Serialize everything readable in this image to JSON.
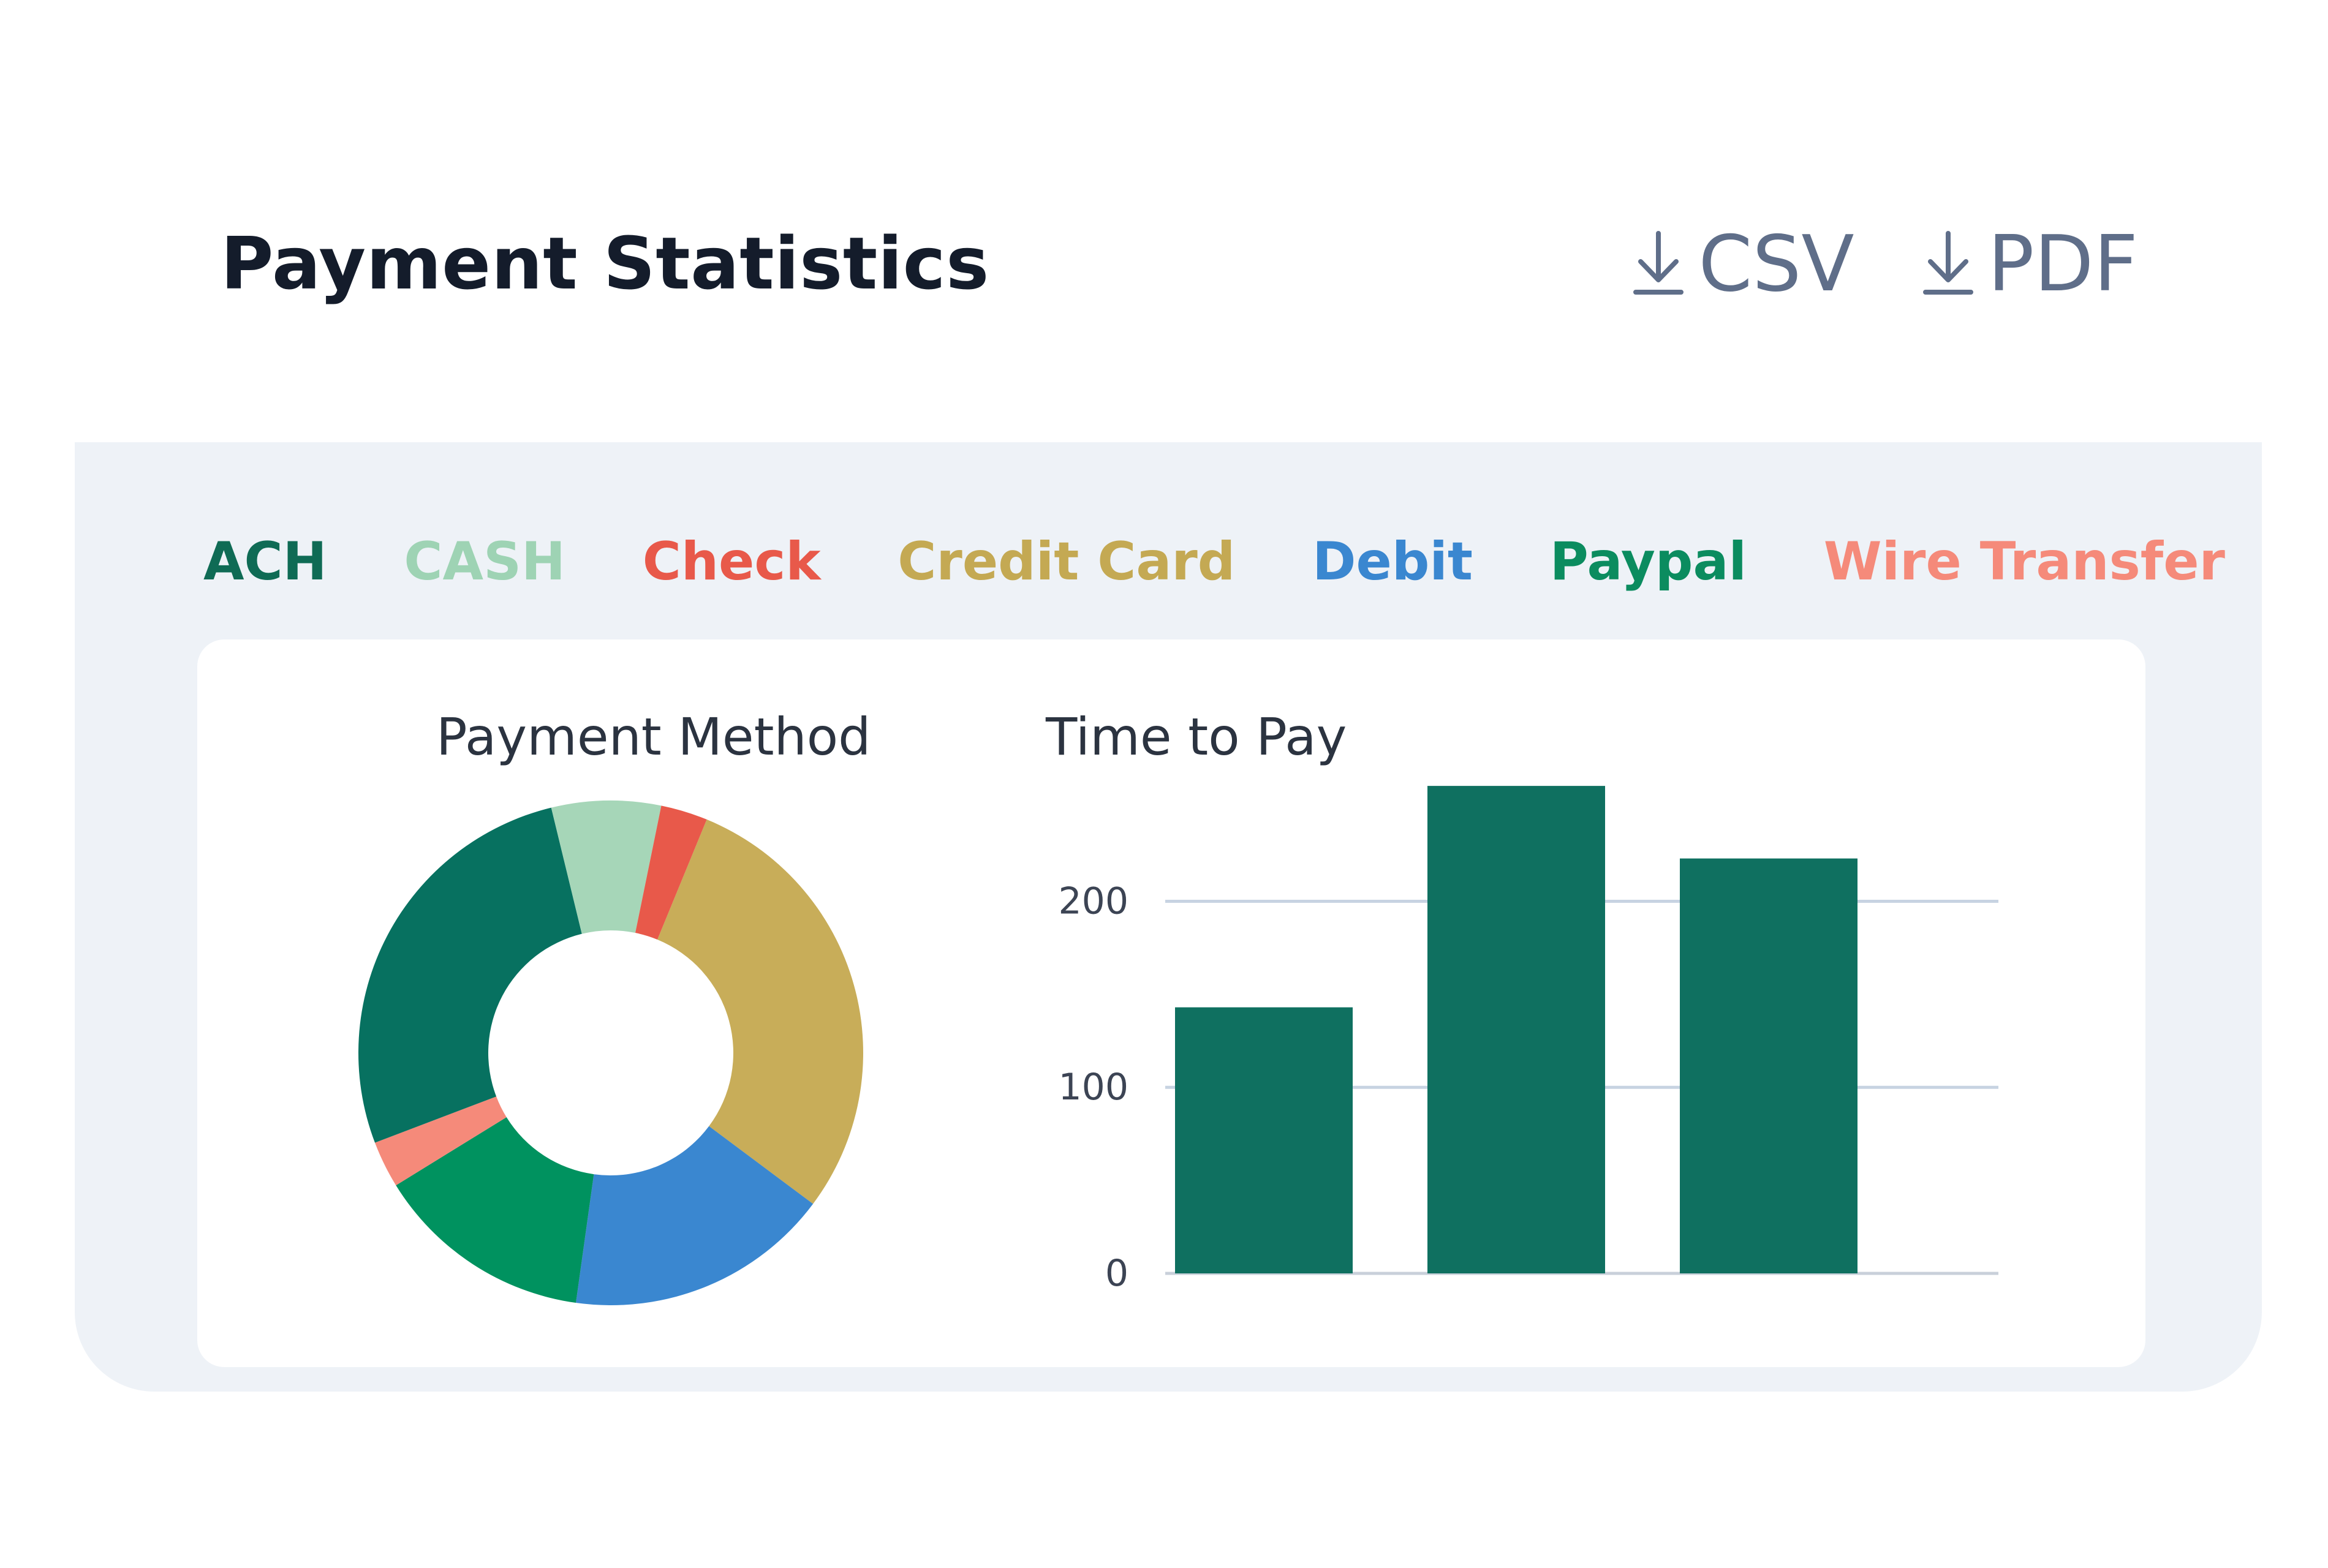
{
  "header": {
    "title": "Payment Statistics",
    "downloads": [
      {
        "label": "CSV",
        "icon": "download-icon"
      },
      {
        "label": "PDF",
        "icon": "download-icon"
      }
    ]
  },
  "legend": [
    {
      "label": "ACH",
      "color": "#0f6b55"
    },
    {
      "label": "CASH",
      "color": "#9ed3b4"
    },
    {
      "label": "Check",
      "color": "#e8594a"
    },
    {
      "label": "Credit Card",
      "color": "#c4a953"
    },
    {
      "label": "Debit",
      "color": "#3a87d0"
    },
    {
      "label": "Paypal",
      "color": "#0b8c5f"
    },
    {
      "label": "Wire Transfer",
      "color": "#f58a7a"
    }
  ],
  "chart_data": [
    {
      "type": "pie",
      "title": "Payment Method",
      "donut": true,
      "labels": [
        "Credit Card",
        "Debit",
        "Paypal",
        "Wire Transfer",
        "ACH",
        "CASH",
        "Check"
      ],
      "values": [
        29,
        17,
        14,
        3,
        27,
        7,
        3
      ],
      "colors": [
        "#c8ad59",
        "#3a87d0",
        "#00925f",
        "#f58a7a",
        "#077160",
        "#a6d6b8",
        "#e8594a"
      ]
    },
    {
      "type": "bar",
      "title": "Time to Pay",
      "categories": [
        "",
        "",
        ""
      ],
      "values": [
        143,
        262,
        223
      ],
      "color": "#0f7060",
      "ylim": [
        0,
        265
      ],
      "yticks": [
        0,
        100,
        200
      ],
      "grid": true,
      "xlabel": "",
      "ylabel": ""
    }
  ]
}
